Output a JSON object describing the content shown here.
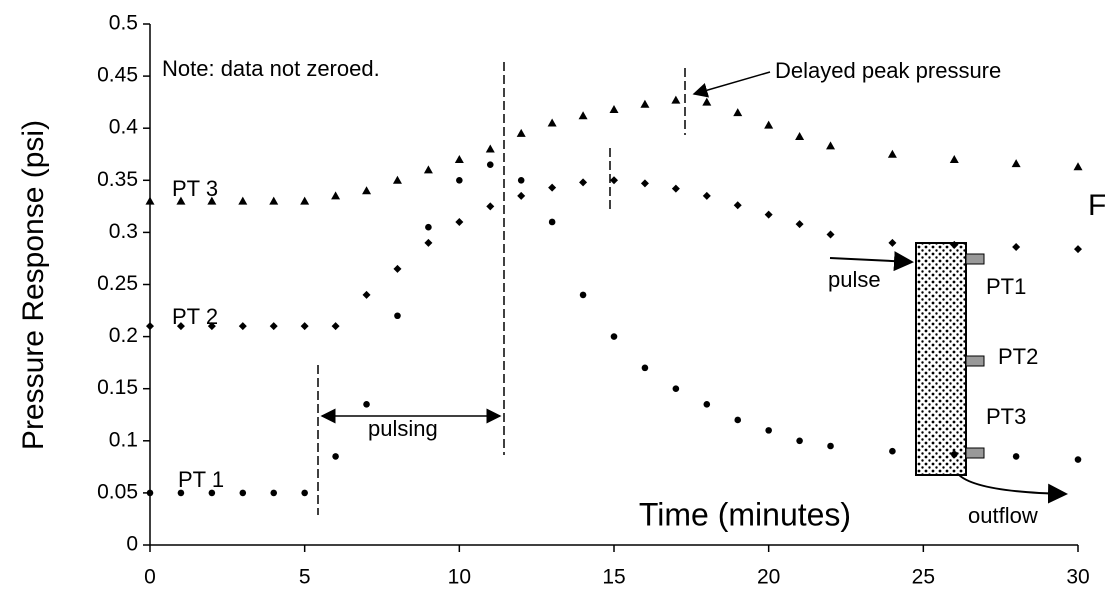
{
  "chart_data": {
    "type": "scatter",
    "x_label": "Time (minutes)",
    "y_label": "Pressure Response (psi)",
    "x": [
      0,
      1,
      2,
      3,
      4,
      5,
      6,
      7,
      8,
      9,
      10,
      11,
      12,
      13,
      14,
      15,
      16,
      17,
      18,
      19,
      20,
      21,
      22,
      24,
      26,
      28,
      30
    ],
    "series": [
      {
        "name": "PT 3",
        "marker": "triangle",
        "color": "#000000",
        "values": [
          0.33,
          0.33,
          0.33,
          0.33,
          0.33,
          0.33,
          0.335,
          0.34,
          0.35,
          0.36,
          0.37,
          0.38,
          0.395,
          0.405,
          0.412,
          0.418,
          0.423,
          0.427,
          0.425,
          0.415,
          0.403,
          0.392,
          0.383,
          0.375,
          0.37,
          0.366,
          0.363
        ]
      },
      {
        "name": "PT 2",
        "marker": "diamond",
        "color": "#000000",
        "values": [
          0.21,
          0.21,
          0.21,
          0.21,
          0.21,
          0.21,
          0.21,
          0.24,
          0.265,
          0.29,
          0.31,
          0.325,
          0.335,
          0.343,
          0.348,
          0.35,
          0.347,
          0.342,
          0.335,
          0.326,
          0.317,
          0.308,
          0.298,
          0.29,
          0.288,
          0.286,
          0.284
        ]
      },
      {
        "name": "PT 1",
        "marker": "circle",
        "color": "#000000",
        "values": [
          0.05,
          0.05,
          0.05,
          0.05,
          0.05,
          0.05,
          0.085,
          0.135,
          0.22,
          0.305,
          0.35,
          0.365,
          0.35,
          0.31,
          0.24,
          0.2,
          0.17,
          0.15,
          0.135,
          0.12,
          0.11,
          0.1,
          0.095,
          0.09,
          0.087,
          0.085,
          0.082
        ]
      }
    ],
    "xlim": [
      0,
      30
    ],
    "ylim": [
      0,
      0.5
    ],
    "xticks": [
      0,
      5,
      10,
      15,
      20,
      25,
      30
    ],
    "yticks": [
      0,
      0.05,
      0.1,
      0.15,
      0.2,
      0.25,
      0.3,
      0.35,
      0.4,
      0.45,
      0.5
    ],
    "annotations": [
      "Note: data not zeroed.",
      "Delayed peak pressure",
      "pulsing",
      "pulse",
      "PT1",
      "PT2",
      "PT3",
      "outflow",
      "F"
    ]
  }
}
